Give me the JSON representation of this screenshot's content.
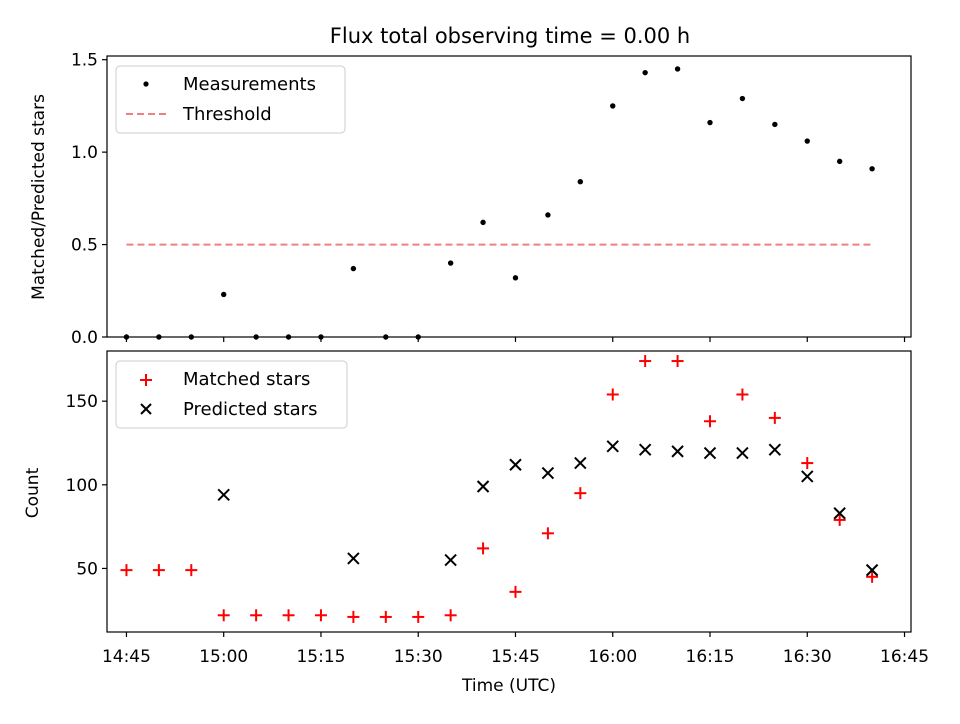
{
  "figure_title": "Flux total observing time = 0.00 h",
  "colors": {
    "measurement": "#000000",
    "threshold": "#f08080",
    "matched": "#ff0000",
    "predicted": "#000000"
  },
  "chart_data": [
    {
      "type": "scatter",
      "ylabel": "Matched/Predicted stars",
      "xlim": [
        -3,
        121
      ],
      "ylim": [
        0,
        1.52
      ],
      "yticks": [
        0.0,
        0.5,
        1.0,
        1.5
      ],
      "ytick_labels": [
        "0.0",
        "0.5",
        "1.0",
        "1.5"
      ],
      "legend_position": "top-left",
      "series": [
        {
          "name": "Measurements",
          "marker": "dot",
          "x": [
            0,
            5,
            10,
            15,
            20,
            25,
            30,
            35,
            40,
            45,
            50,
            55,
            60,
            65,
            70,
            75,
            80,
            85,
            90,
            95,
            100,
            105,
            110,
            115
          ],
          "y": [
            0.0,
            0.0,
            0.0,
            0.23,
            0.0,
            0.0,
            0.0,
            0.37,
            0.0,
            0.0,
            0.4,
            0.62,
            0.32,
            0.66,
            0.84,
            1.25,
            1.43,
            1.45,
            1.16,
            1.29,
            1.15,
            1.06,
            0.95,
            0.91
          ]
        },
        {
          "name": "Threshold",
          "marker": "dashed-line",
          "x": [
            0,
            115
          ],
          "y": [
            0.5,
            0.5
          ]
        }
      ]
    },
    {
      "type": "scatter",
      "ylabel": "Count",
      "xlabel": "Time (UTC)",
      "xlim": [
        -3,
        121
      ],
      "ylim": [
        12,
        180
      ],
      "yticks": [
        50,
        100,
        150
      ],
      "ytick_labels": [
        "50",
        "100",
        "150"
      ],
      "xticks": [
        0,
        15,
        30,
        45,
        60,
        75,
        90,
        105,
        120
      ],
      "xtick_labels": [
        "14:45",
        "15:00",
        "15:15",
        "15:30",
        "15:45",
        "16:00",
        "16:15",
        "16:30",
        "16:45"
      ],
      "legend_position": "top-left",
      "series": [
        {
          "name": "Matched stars",
          "marker": "plus",
          "x": [
            0,
            5,
            10,
            15,
            20,
            25,
            30,
            35,
            40,
            45,
            50,
            55,
            60,
            65,
            70,
            75,
            80,
            85,
            90,
            95,
            100,
            105,
            110,
            115
          ],
          "y": [
            49,
            49,
            49,
            22,
            22,
            22,
            22,
            21,
            21,
            21,
            22,
            62,
            36,
            71,
            95,
            154,
            174,
            174,
            138,
            154,
            140,
            113,
            79,
            45
          ]
        },
        {
          "name": "Predicted stars",
          "marker": "x",
          "x": [
            15,
            35,
            50,
            55,
            60,
            65,
            70,
            75,
            80,
            85,
            90,
            95,
            100,
            105,
            110,
            115
          ],
          "y": [
            94,
            56,
            55,
            99,
            112,
            107,
            113,
            123,
            121,
            120,
            119,
            119,
            121,
            105,
            83,
            49
          ]
        }
      ]
    }
  ]
}
